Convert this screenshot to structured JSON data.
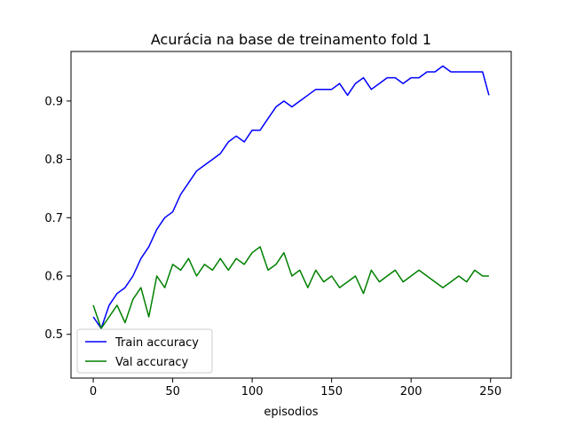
{
  "chart_data": {
    "type": "line",
    "title": "Acurácia na base de treinamento fold 1",
    "xlabel": "episodios",
    "ylabel": "",
    "xlim": [
      -14,
      263
    ],
    "ylim": [
      0.425,
      0.985
    ],
    "xticks": [
      0,
      50,
      100,
      150,
      200,
      250
    ],
    "yticks": [
      0.5,
      0.6,
      0.7,
      0.8,
      0.9
    ],
    "xtick_labels": [
      "0",
      "50",
      "100",
      "150",
      "200",
      "250"
    ],
    "ytick_labels": [
      "0.5",
      "0.6",
      "0.7",
      "0.8",
      "0.9"
    ],
    "grid": false,
    "legend_position": "lower-left",
    "series": [
      {
        "name": "Train accuracy",
        "color": "#0000ff",
        "x": [
          0,
          5,
          10,
          15,
          20,
          25,
          30,
          35,
          40,
          45,
          50,
          55,
          60,
          65,
          70,
          75,
          80,
          85,
          90,
          95,
          100,
          105,
          110,
          115,
          120,
          125,
          130,
          135,
          140,
          145,
          150,
          155,
          160,
          165,
          170,
          175,
          180,
          185,
          190,
          195,
          200,
          205,
          210,
          215,
          220,
          225,
          230,
          235,
          240,
          245,
          249
        ],
        "y": [
          0.53,
          0.51,
          0.55,
          0.57,
          0.58,
          0.6,
          0.63,
          0.65,
          0.68,
          0.7,
          0.71,
          0.74,
          0.76,
          0.78,
          0.79,
          0.8,
          0.81,
          0.83,
          0.84,
          0.83,
          0.85,
          0.85,
          0.87,
          0.89,
          0.9,
          0.89,
          0.9,
          0.91,
          0.92,
          0.92,
          0.92,
          0.93,
          0.91,
          0.93,
          0.94,
          0.92,
          0.93,
          0.94,
          0.94,
          0.93,
          0.94,
          0.94,
          0.95,
          0.95,
          0.96,
          0.95,
          0.95,
          0.95,
          0.95,
          0.95,
          0.91
        ]
      },
      {
        "name": "Val accuracy",
        "color": "#008000",
        "x": [
          0,
          5,
          10,
          15,
          20,
          25,
          30,
          35,
          40,
          45,
          50,
          55,
          60,
          65,
          70,
          75,
          80,
          85,
          90,
          95,
          100,
          105,
          110,
          115,
          120,
          125,
          130,
          135,
          140,
          145,
          150,
          155,
          160,
          165,
          170,
          175,
          180,
          185,
          190,
          195,
          200,
          205,
          210,
          215,
          220,
          225,
          230,
          235,
          240,
          245,
          249
        ],
        "y": [
          0.55,
          0.51,
          0.53,
          0.55,
          0.52,
          0.56,
          0.58,
          0.53,
          0.6,
          0.58,
          0.62,
          0.61,
          0.63,
          0.6,
          0.62,
          0.61,
          0.63,
          0.61,
          0.63,
          0.62,
          0.64,
          0.65,
          0.61,
          0.62,
          0.64,
          0.6,
          0.61,
          0.58,
          0.61,
          0.59,
          0.6,
          0.58,
          0.59,
          0.6,
          0.57,
          0.61,
          0.59,
          0.6,
          0.61,
          0.59,
          0.6,
          0.61,
          0.6,
          0.59,
          0.58,
          0.59,
          0.6,
          0.59,
          0.61,
          0.6,
          0.6
        ]
      }
    ]
  }
}
